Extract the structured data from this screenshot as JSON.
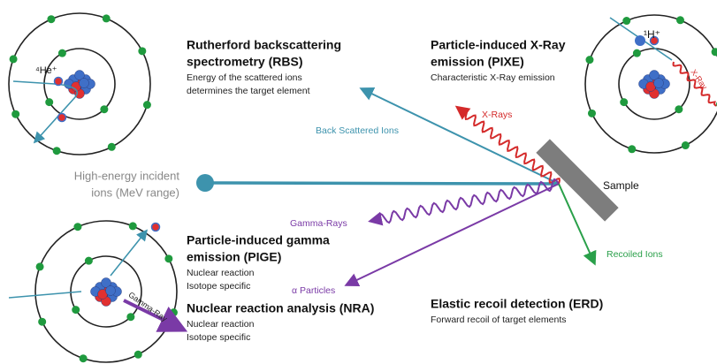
{
  "techniques": [
    {
      "title_lines": [
        "Rutherford backscattering",
        "spectrometry (RBS)"
      ],
      "description_lines": [
        "Energy of the scattered ions",
        "determines the target element"
      ]
    },
    {
      "title_lines": [
        "Particle-induced X-Ray",
        "emission (PIXE)"
      ],
      "description_lines": [
        "Characteristic X-Ray emission"
      ]
    },
    {
      "title_lines": [
        "Particle-induced gamma",
        "emission (PIGE)"
      ],
      "description_lines": [
        "Nuclear reaction",
        "Isotope specific"
      ]
    },
    {
      "title_lines": [
        "Nuclear reaction analysis (NRA)"
      ],
      "description_lines": [
        "Nuclear reaction",
        "Isotope specific"
      ]
    },
    {
      "title_lines": [
        "Elastic recoil  detection (ERD)"
      ],
      "description_lines": [
        "Forward recoil of target elements"
      ]
    }
  ],
  "labels": {
    "back_scattered": "Back Scattered Ions",
    "x_rays": "X-Rays",
    "gamma_rays": "Gamma-Rays",
    "alpha": "α Particles",
    "recoiled": "Recoiled Ions",
    "sample": "Sample",
    "incident_lines": [
      "High-energy incident",
      "ions (MeV range)"
    ],
    "helium": "⁴He⁺",
    "hydrogen": "¹H⁺",
    "x_ray": "X-Ray",
    "gamma_ray": "Gamma-Ray"
  }
}
